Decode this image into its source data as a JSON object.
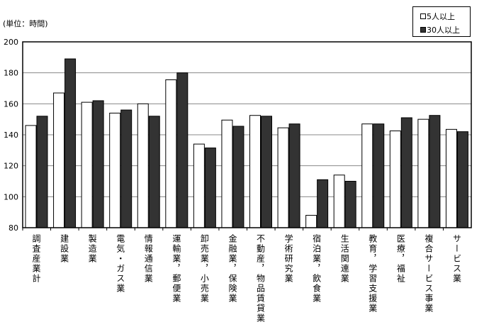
{
  "chart_data": {
    "type": "bar",
    "unit_label": "(単位：時間)",
    "ylim": [
      80,
      200
    ],
    "yticks": [
      80,
      100,
      120,
      140,
      160,
      180,
      200
    ],
    "grid": true,
    "legend_placement": "top-right",
    "categories": [
      "調査産業計",
      "建設業",
      "製造業",
      "電気・ガス業",
      "情報通信業",
      "運輸業，郵便業",
      "卸売業，小売業",
      "金融業，保険業",
      "不動産，物品賃貸業",
      "学術研究業",
      "宿泊業，飲食業",
      "生活関連業",
      "教育，学習支援業",
      "医療，福祉",
      "複合サービス事業",
      "サービス業"
    ],
    "series": [
      {
        "name": "5人以上",
        "color": "#ffffff",
        "values": [
          146,
          167,
          161,
          154,
          160,
          175.5,
          134,
          149.5,
          152.5,
          144.5,
          88,
          114,
          147,
          142.5,
          150,
          143.5
        ]
      },
      {
        "name": "30人以上",
        "color": "#333333",
        "values": [
          152,
          189,
          162,
          156,
          152,
          180,
          131.5,
          145.5,
          152,
          147,
          111,
          110,
          147,
          151,
          152.5,
          142
        ]
      }
    ]
  }
}
